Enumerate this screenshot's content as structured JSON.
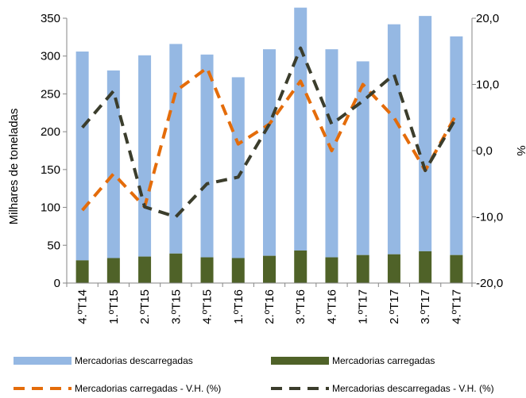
{
  "chart_data": {
    "type": "bar",
    "categories": [
      "4.ºT14",
      "1.ºT15",
      "2.ºT15",
      "3.ºT15",
      "4.ºT15",
      "1.ºT16",
      "2.ºT16",
      "3.ºT16",
      "4.ºT16",
      "1.ºT17",
      "2.ºT17",
      "3.ºT17",
      "4.ºT17"
    ],
    "ylabel": "Milhares de toneladas",
    "y2label": "%",
    "ylim": [
      0,
      350
    ],
    "y2lim": [
      -20,
      20
    ],
    "yticks": [
      "0",
      "50",
      "100",
      "150",
      "200",
      "250",
      "300",
      "350"
    ],
    "y2ticks": [
      "-20,0",
      "-10,0",
      "0,0",
      "10,0",
      "20,0"
    ],
    "grid": false,
    "legend_position": "bottom",
    "series": [
      {
        "name": "Mercadorias descarregadas",
        "kind": "bar-stack",
        "color": "#95b8e3",
        "values": [
          276,
          248,
          266,
          277,
          268,
          239,
          273,
          321,
          275,
          256,
          304,
          311,
          289
        ]
      },
      {
        "name": "Mercadorias carregadas",
        "kind": "bar-stack",
        "color": "#4f6228",
        "values": [
          30,
          33,
          35,
          39,
          34,
          33,
          36,
          43,
          34,
          37,
          38,
          42,
          37
        ]
      },
      {
        "name": "Mercadorias carregadas - V.H. (%)",
        "kind": "dashed-line",
        "axis": "right",
        "color": "#e46c0a",
        "values": [
          -9,
          -3.5,
          -8.5,
          9,
          12.5,
          1,
          4,
          10.5,
          0,
          10,
          5,
          -3,
          5.5
        ]
      },
      {
        "name": "Mercadorias descarregadas - V.H. (%)",
        "kind": "dashed-line",
        "axis": "right",
        "color": "#3b3d2c",
        "values": [
          3.5,
          9,
          -8.5,
          -10,
          -5,
          -4,
          4,
          15.5,
          4,
          7.5,
          11.5,
          -3,
          5
        ]
      }
    ]
  }
}
